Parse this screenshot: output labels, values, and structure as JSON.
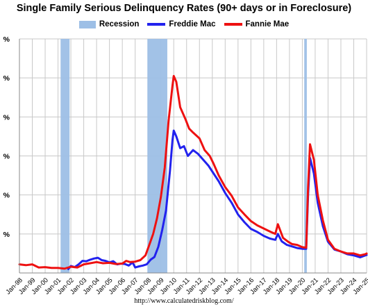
{
  "chart_data": {
    "type": "line",
    "title": "Single Family Serious Delinquency Rates (90+ days or in Foreclosure)",
    "source": "http://www.calculatedriskblog.com/",
    "legend_placement": "top",
    "grid": true,
    "x_range": [
      "Jan-98",
      "Jan-25"
    ],
    "ylim": [
      0,
      6
    ],
    "y_ticks": [
      {
        "value": 1,
        "label": "%"
      },
      {
        "value": 2,
        "label": "%"
      },
      {
        "value": 3,
        "label": "%"
      },
      {
        "value": 4,
        "label": "%"
      },
      {
        "value": 5,
        "label": "%"
      },
      {
        "value": 6,
        "label": "%"
      }
    ],
    "x_tick_labels": [
      "Jan-98",
      "Jan-99",
      "Jan-00",
      "Jan-01",
      "Jan-02",
      "Jan-03",
      "Jan-04",
      "Jan-05",
      "Jan-06",
      "Jan-07",
      "Jan-08",
      "Jan-09",
      "Jan-10",
      "Jan-11",
      "Jan-12",
      "Jan-13",
      "Jan-14",
      "Jan-15",
      "Jan-16",
      "Jan-17",
      "Jan-18",
      "Jan-19",
      "Jan-20",
      "Jan-21",
      "Jan-22",
      "Jan-23",
      "Jan-24",
      "Jan-25"
    ],
    "recessions": [
      {
        "start": 2001.2,
        "end": 2001.9
      },
      {
        "start": 2007.95,
        "end": 2009.5
      },
      {
        "start": 2020.15,
        "end": 2020.35
      }
    ],
    "series": [
      {
        "name": "Recession",
        "color": "#9dbfe6",
        "kind": "band"
      },
      {
        "name": "Freddie Mac",
        "color": "#2222ee",
        "x": [
          2001.8,
          2002.0,
          2002.3,
          2002.6,
          2002.9,
          2003.2,
          2003.5,
          2003.8,
          2004.1,
          2004.4,
          2004.7,
          2005.0,
          2005.3,
          2005.6,
          2005.9,
          2006.2,
          2006.5,
          2006.8,
          2007.0,
          2007.3,
          2007.6,
          2007.9,
          2008.2,
          2008.5,
          2008.8,
          2009.1,
          2009.4,
          2009.7,
          2009.9,
          2010.0,
          2010.2,
          2010.5,
          2010.8,
          2011.1,
          2011.5,
          2011.9,
          2012.3,
          2012.7,
          2013.0,
          2013.5,
          2014.0,
          2014.5,
          2015.0,
          2015.5,
          2016.0,
          2016.5,
          2017.0,
          2017.5,
          2017.9,
          2018.1,
          2018.4,
          2018.8,
          2019.2,
          2019.6,
          2020.0,
          2020.3,
          2020.45,
          2020.6,
          2020.9,
          2021.2,
          2021.6,
          2022.0,
          2022.5,
          2023.0,
          2023.5,
          2024.0,
          2024.5,
          2024.9,
          2025.0
        ],
        "y": [
          0.1,
          0.18,
          0.15,
          0.22,
          0.31,
          0.3,
          0.34,
          0.37,
          0.39,
          0.33,
          0.31,
          0.27,
          0.3,
          0.22,
          0.24,
          0.23,
          0.19,
          0.27,
          0.14,
          0.17,
          0.19,
          0.22,
          0.34,
          0.41,
          0.67,
          1.1,
          1.6,
          2.6,
          3.4,
          3.65,
          3.5,
          3.2,
          3.25,
          3.0,
          3.15,
          3.05,
          2.9,
          2.75,
          2.6,
          2.35,
          2.05,
          1.8,
          1.5,
          1.3,
          1.13,
          1.05,
          0.95,
          0.88,
          0.85,
          1.0,
          0.81,
          0.72,
          0.68,
          0.64,
          0.62,
          0.62,
          2.0,
          2.95,
          2.55,
          1.8,
          1.2,
          0.8,
          0.6,
          0.55,
          0.48,
          0.45,
          0.4,
          0.45,
          0.46
        ]
      },
      {
        "name": "Fannie Mae",
        "color": "#ee1111",
        "x": [
          1998.0,
          1998.5,
          1999.0,
          1999.5,
          2000.0,
          2000.5,
          2001.0,
          2001.5,
          2002.0,
          2002.5,
          2003.0,
          2003.5,
          2004.0,
          2004.5,
          2005.0,
          2005.5,
          2006.0,
          2006.3,
          2006.6,
          2007.0,
          2007.4,
          2007.8,
          2008.1,
          2008.4,
          2008.7,
          2009.0,
          2009.3,
          2009.6,
          2009.9,
          2010.0,
          2010.2,
          2010.5,
          2010.9,
          2011.2,
          2011.5,
          2012.0,
          2012.4,
          2012.8,
          2013.1,
          2013.5,
          2014.0,
          2014.5,
          2015.0,
          2015.5,
          2016.0,
          2016.5,
          2017.0,
          2017.5,
          2017.9,
          2018.1,
          2018.5,
          2018.9,
          2019.2,
          2019.6,
          2020.0,
          2020.3,
          2020.45,
          2020.6,
          2020.9,
          2021.2,
          2021.6,
          2022.0,
          2022.5,
          2023.0,
          2023.5,
          2024.0,
          2024.5,
          2024.9,
          2025.0
        ],
        "y": [
          0.22,
          0.2,
          0.22,
          0.14,
          0.15,
          0.13,
          0.13,
          0.11,
          0.16,
          0.14,
          0.22,
          0.25,
          0.28,
          0.25,
          0.26,
          0.23,
          0.24,
          0.31,
          0.28,
          0.29,
          0.33,
          0.45,
          0.72,
          1.0,
          1.4,
          1.95,
          2.7,
          3.9,
          4.8,
          5.05,
          4.9,
          4.25,
          3.95,
          3.7,
          3.6,
          3.45,
          3.15,
          3.0,
          2.8,
          2.5,
          2.2,
          1.98,
          1.68,
          1.5,
          1.33,
          1.22,
          1.14,
          1.06,
          1.0,
          1.25,
          0.9,
          0.8,
          0.74,
          0.72,
          0.66,
          0.65,
          2.2,
          3.3,
          2.9,
          2.0,
          1.35,
          0.85,
          0.62,
          0.55,
          0.5,
          0.5,
          0.45,
          0.48,
          0.5
        ]
      }
    ]
  }
}
